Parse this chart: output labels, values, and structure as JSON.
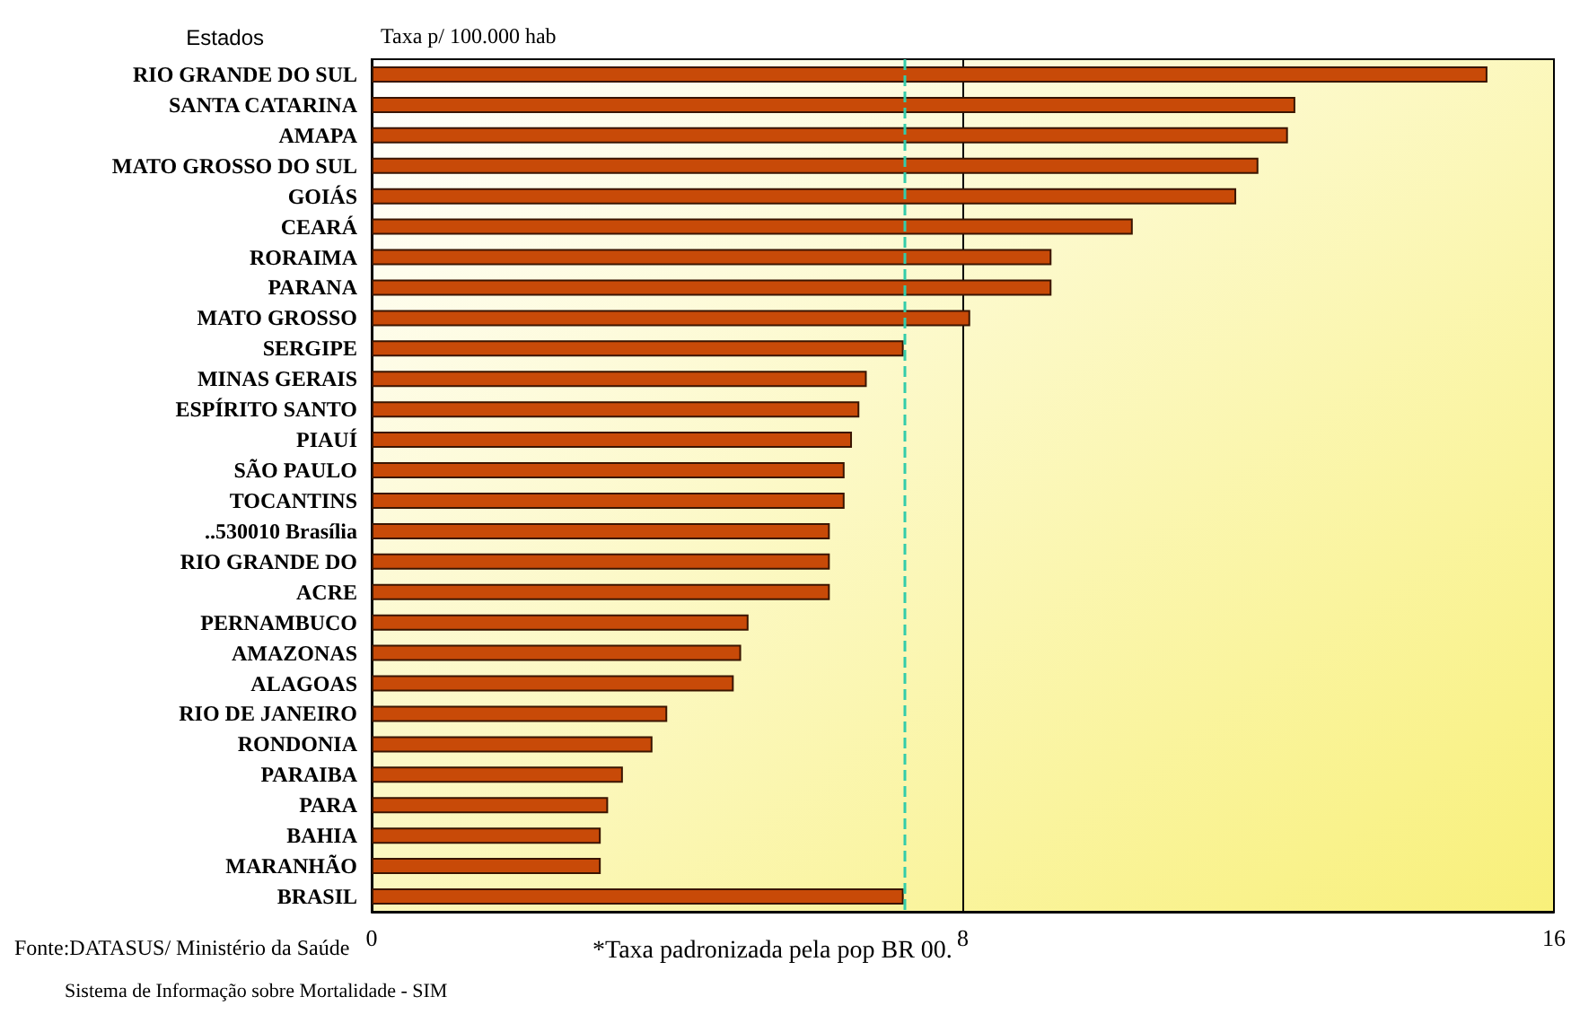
{
  "chart_data": {
    "type": "bar",
    "orientation": "horizontal",
    "ylabel": "Estados",
    "xlabel": "Taxa p/ 100.000 hab",
    "categories": [
      "RIO GRANDE DO SUL",
      "SANTA CATARINA",
      "AMAPA",
      "MATO GROSSO DO SUL",
      "GOIÁS",
      "CEARÁ",
      "RORAIMA",
      "PARANA",
      "MATO GROSSO",
      "SERGIPE",
      "MINAS GERAIS",
      "ESPÍRITO SANTO",
      "PIAUÍ",
      "SÃO PAULO",
      "TOCANTINS",
      "..530010 Brasília",
      "RIO GRANDE DO",
      "ACRE",
      "PERNAMBUCO",
      "AMAZONAS",
      "ALAGOAS",
      "RIO DE JANEIRO",
      "RONDONIA",
      "PARAIBA",
      "PARA",
      "BAHIA",
      "MARANHÃO",
      "BRASIL"
    ],
    "values": [
      15.1,
      12.5,
      12.4,
      12.0,
      11.7,
      10.3,
      9.2,
      9.2,
      8.1,
      7.2,
      6.7,
      6.6,
      6.5,
      6.4,
      6.4,
      6.2,
      6.2,
      6.2,
      5.1,
      5.0,
      4.9,
      4.0,
      3.8,
      3.4,
      3.2,
      3.1,
      3.1,
      7.2
    ],
    "color": "#c84a08",
    "xlim": [
      0,
      16
    ],
    "xticks": [
      0,
      8,
      16
    ],
    "grid": "x",
    "ref_lines": [
      {
        "axis": "x",
        "value": 7.2,
        "color": "#33ccaa",
        "line_style": "dashed"
      }
    ],
    "annotations": [
      "Fonte:DATASUS/ Ministério da Saúde",
      "Sistema de Informação sobre Mortalidade - SIM",
      "*Taxa padronizada pela pop BR 00."
    ]
  }
}
